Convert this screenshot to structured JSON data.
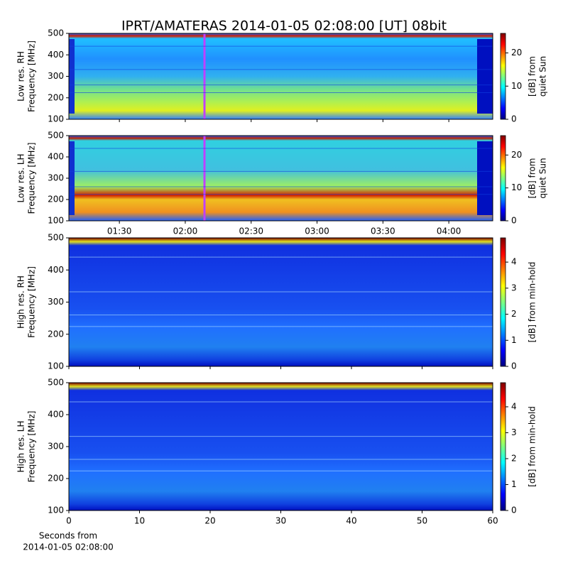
{
  "chart_data": [
    {
      "type": "heatmap",
      "title": "IPRT/AMATERAS 2014-01-05 02:08:00 [UT]   08bit",
      "ylabel": [
        "Low res. RH",
        "Frequency [MHz]"
      ],
      "ylim": [
        100,
        500
      ],
      "yticks": [
        100,
        200,
        300,
        400,
        500
      ],
      "xlim": [
        67,
        260
      ],
      "xticks": [
        90,
        120,
        150,
        180,
        210,
        240
      ],
      "colorbar": {
        "label": [
          "[dB] from",
          "quiet Sun"
        ],
        "lim": [
          0,
          25.9
        ],
        "ticks": [
          0,
          10,
          20
        ],
        "colormap": "jet"
      }
    },
    {
      "type": "heatmap",
      "ylabel": [
        "Low res. LH",
        "Frequency [MHz]"
      ],
      "ylim": [
        100,
        500
      ],
      "yticks": [
        100,
        200,
        300,
        400,
        500
      ],
      "xlim": [
        67,
        260
      ],
      "xticks": [
        {
          "value": 90,
          "label": "01:30"
        },
        {
          "value": 120,
          "label": "02:00"
        },
        {
          "value": 150,
          "label": "02:30"
        },
        {
          "value": 180,
          "label": "03:00"
        },
        {
          "value": 210,
          "label": "03:30"
        },
        {
          "value": 240,
          "label": "04:00"
        }
      ],
      "colorbar": {
        "label": [
          "[dB] from",
          "quiet Sun"
        ],
        "lim": [
          0,
          25.9
        ],
        "ticks": [
          0,
          10,
          20
        ],
        "colormap": "jet"
      }
    },
    {
      "type": "heatmap",
      "ylabel": [
        "High res. RH",
        "Frequency [MHz]"
      ],
      "ylim": [
        100,
        500
      ],
      "yticks": [
        100,
        200,
        300,
        400,
        500
      ],
      "xlim": [
        0,
        60
      ],
      "xticks": [
        0,
        10,
        20,
        30,
        40,
        50,
        60
      ],
      "colorbar": {
        "label": [
          "[dB] from min-hold"
        ],
        "lim": [
          0,
          4.93
        ],
        "ticks": [
          0,
          1,
          2,
          3,
          4
        ],
        "colormap": "jet"
      }
    },
    {
      "type": "heatmap",
      "ylabel": [
        "High res. LH",
        "Frequency [MHz]"
      ],
      "ylim": [
        100,
        500
      ],
      "yticks": [
        100,
        200,
        300,
        400,
        500
      ],
      "xlim": [
        0,
        60
      ],
      "xticks": [
        0,
        10,
        20,
        30,
        40,
        50,
        60
      ],
      "show_xtick_labels": true,
      "xlabel": [
        "Seconds from",
        "2014-01-05 02:08:00"
      ],
      "colorbar": {
        "label": [
          "[dB] from min-hold"
        ],
        "lim": [
          0,
          4.93
        ],
        "ticks": [
          0,
          1,
          2,
          3,
          4
        ],
        "colormap": "jet"
      }
    }
  ]
}
